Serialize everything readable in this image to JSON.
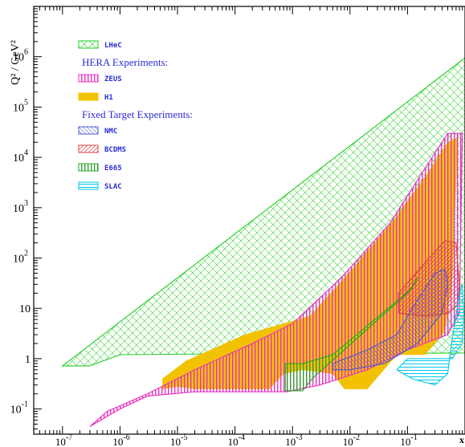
{
  "chart_data": {
    "type": "area",
    "title": "",
    "xlabel": "",
    "ylabel": "Q² / GeV²",
    "x_scale": "log",
    "y_scale": "log",
    "xlim": [
      3.16e-08,
      1
    ],
    "ylim": [
      0.0316,
      10000000
    ],
    "x_ticks": [
      {
        "value": 1e-07,
        "base": "10",
        "exp": "-7"
      },
      {
        "value": 1e-06,
        "base": "10",
        "exp": "-6"
      },
      {
        "value": 1e-05,
        "base": "10",
        "exp": "-5"
      },
      {
        "value": 0.0001,
        "base": "10",
        "exp": "-4"
      },
      {
        "value": 0.001,
        "base": "10",
        "exp": "-3"
      },
      {
        "value": 0.01,
        "base": "10",
        "exp": "-2"
      },
      {
        "value": 0.1,
        "base": "10",
        "exp": "-1"
      }
    ],
    "x_edge_label": "x",
    "y_ticks": [
      {
        "value": 1000000.0,
        "base": "10",
        "exp": "6"
      },
      {
        "value": 100000.0,
        "base": "10",
        "exp": "5"
      },
      {
        "value": 10000.0,
        "base": "10",
        "exp": "4"
      },
      {
        "value": 1000.0,
        "base": "10",
        "exp": "3"
      },
      {
        "value": 100.0,
        "base": "10",
        "exp": "2"
      },
      {
        "value": 10,
        "base": "10",
        "exp": ""
      },
      {
        "value": 1,
        "base": "1",
        "exp": ""
      },
      {
        "value": 0.1,
        "base": "10",
        "exp": "-1"
      }
    ],
    "legend_position": "top-left",
    "legend": [
      {
        "kind": "entry",
        "label": "LHeC",
        "series": "LHeC"
      },
      {
        "kind": "header",
        "label": "HERA Experiments:"
      },
      {
        "kind": "entry",
        "label": "ZEUS",
        "series": "ZEUS"
      },
      {
        "kind": "entry",
        "label": "H1",
        "series": "H1"
      },
      {
        "kind": "header",
        "label": "Fixed Target Experiments:"
      },
      {
        "kind": "entry",
        "label": "NMC",
        "series": "NMC"
      },
      {
        "kind": "entry",
        "label": "BCDMS",
        "series": "BCDMS"
      },
      {
        "kind": "entry",
        "label": "E665",
        "series": "E665"
      },
      {
        "kind": "entry",
        "label": "SLAC",
        "series": "SLAC"
      }
    ],
    "series": [
      {
        "name": "LHeC",
        "color": "#22cc22",
        "pattern": "crosshatch",
        "boundary": [
          [
            3e-07,
            0.72
          ],
          [
            1e-06,
            1.2
          ],
          [
            0.0001,
            1.25
          ],
          [
            0.01,
            1.25
          ],
          [
            1,
            1.3
          ],
          [
            1,
            950000
          ],
          [
            1e-07,
            0.72
          ]
        ]
      },
      {
        "name": "H1",
        "color": "#f2c200",
        "pattern": "solid",
        "boundary": [
          [
            5.5e-06,
            0.25
          ],
          [
            1e-05,
            0.28
          ],
          [
            2e-05,
            0.25
          ],
          [
            0.0004,
            0.25
          ],
          [
            0.0007,
            0.5
          ],
          [
            0.0015,
            0.6
          ],
          [
            0.005,
            0.5
          ],
          [
            0.008,
            0.25
          ],
          [
            0.02,
            0.25
          ],
          [
            0.065,
            1.2
          ],
          [
            0.2,
            1.2
          ],
          [
            0.45,
            3.5
          ],
          [
            0.6,
            40
          ],
          [
            0.75,
            25000
          ],
          [
            0.5,
            20000
          ],
          [
            0.2,
            4000
          ],
          [
            0.06,
            600
          ],
          [
            0.008,
            40
          ],
          [
            0.002,
            7
          ],
          [
            0.00015,
            3
          ],
          [
            1.4e-05,
            0.9
          ],
          [
            5.5e-06,
            0.4
          ]
        ]
      },
      {
        "name": "ZEUS",
        "color": "#e830c0",
        "pattern": "vertical-hatch",
        "boundary": [
          [
            3e-07,
            0.045
          ],
          [
            1e-06,
            0.1
          ],
          [
            3e-06,
            0.18
          ],
          [
            2e-05,
            0.22
          ],
          [
            0.0008,
            0.22
          ],
          [
            0.003,
            0.3
          ],
          [
            0.02,
            0.6
          ],
          [
            0.1,
            1.5
          ],
          [
            0.5,
            3
          ],
          [
            0.8,
            8
          ],
          [
            0.9,
            30000
          ],
          [
            0.5,
            30000
          ],
          [
            0.2,
            6000
          ],
          [
            0.05,
            500
          ],
          [
            0.007,
            40
          ],
          [
            0.001,
            5
          ],
          [
            0.0002,
            2
          ],
          [
            2e-05,
            0.6
          ],
          [
            3e-06,
            0.2
          ],
          [
            6e-07,
            0.09
          ]
        ]
      },
      {
        "name": "E665",
        "color": "#2aa02a",
        "pattern": "vertical-hatch",
        "boundary": [
          [
            0.00075,
            0.23
          ],
          [
            0.0015,
            0.23
          ],
          [
            0.0022,
            0.4
          ],
          [
            0.1,
            20
          ],
          [
            0.15,
            40
          ],
          [
            0.12,
            25
          ],
          [
            0.005,
            1.2
          ],
          [
            0.0015,
            0.8
          ],
          [
            0.00075,
            0.8
          ]
        ]
      },
      {
        "name": "BCDMS",
        "color": "#d84040",
        "pattern": "diagonal-hatch",
        "boundary": [
          [
            0.07,
            8
          ],
          [
            0.2,
            7
          ],
          [
            0.5,
            8
          ],
          [
            0.75,
            12
          ],
          [
            0.8,
            30
          ],
          [
            0.7,
            200
          ],
          [
            0.45,
            220
          ],
          [
            0.2,
            80
          ],
          [
            0.07,
            20
          ]
        ]
      },
      {
        "name": "NMC",
        "color": "#4a5ad0",
        "pattern": "diagonal-hatch",
        "boundary": [
          [
            0.005,
            0.8
          ],
          [
            0.02,
            1.5
          ],
          [
            0.065,
            3
          ],
          [
            0.12,
            10
          ],
          [
            0.3,
            50
          ],
          [
            0.45,
            60
          ],
          [
            0.5,
            30
          ],
          [
            0.4,
            8
          ],
          [
            0.15,
            2
          ],
          [
            0.04,
            0.8
          ],
          [
            0.01,
            0.6
          ],
          [
            0.005,
            0.6
          ]
        ]
      },
      {
        "name": "SLAC",
        "color": "#00c8e8",
        "pattern": "horizontal-hatch",
        "boundary": [
          [
            0.065,
            0.6
          ],
          [
            0.12,
            0.4
          ],
          [
            0.3,
            0.3
          ],
          [
            0.5,
            0.5
          ],
          [
            0.6,
            2.5
          ],
          [
            0.8,
            20
          ],
          [
            0.9,
            30
          ],
          [
            0.95,
            8
          ],
          [
            0.9,
            2
          ],
          [
            0.6,
            1
          ],
          [
            0.25,
            1
          ],
          [
            0.1,
            1
          ]
        ]
      }
    ]
  }
}
